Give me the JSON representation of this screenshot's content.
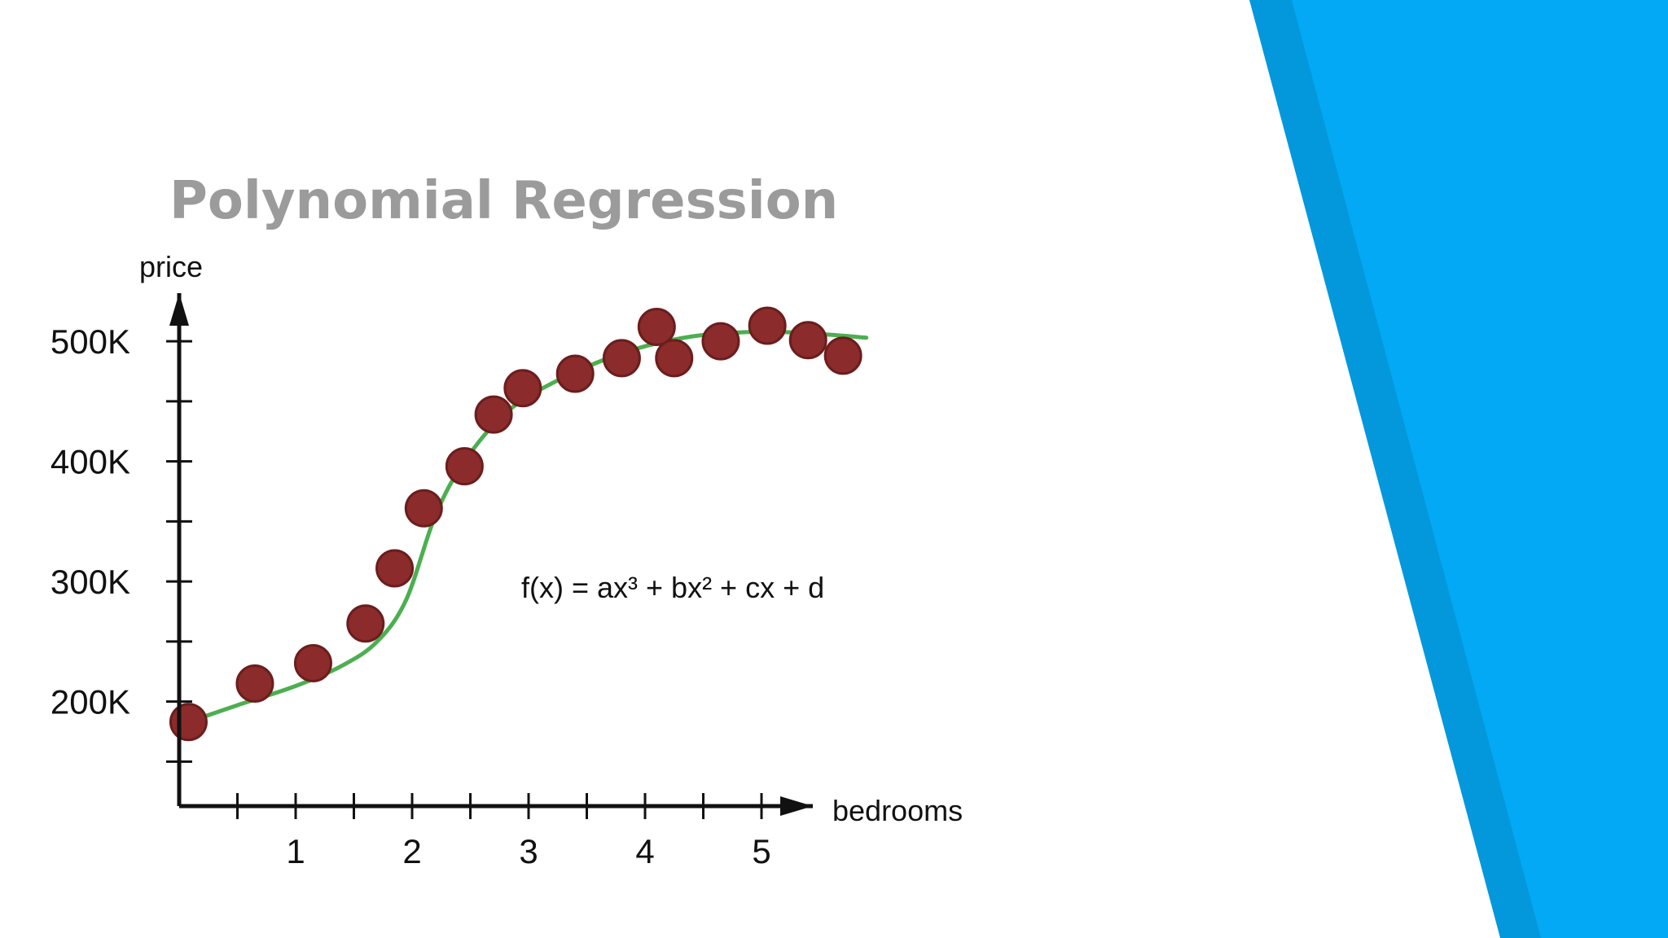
{
  "slide": {
    "title": "Polynomial Regression",
    "colors": {
      "background": "#ffffff",
      "title": "#9b9b9b",
      "accent_light": "#03a9f4",
      "accent_dark": "#0398dc"
    }
  },
  "chart_data": {
    "type": "scatter",
    "title": "",
    "xlabel": "bedrooms",
    "ylabel": "price",
    "xlim": [
      0,
      5.5
    ],
    "ylim": [
      113,
      523
    ],
    "x_ticks": [
      {
        "value": 0.5,
        "label": ""
      },
      {
        "value": 1,
        "label": "1"
      },
      {
        "value": 1.5,
        "label": ""
      },
      {
        "value": 2,
        "label": "2"
      },
      {
        "value": 2.5,
        "label": ""
      },
      {
        "value": 3,
        "label": "3"
      },
      {
        "value": 3.5,
        "label": ""
      },
      {
        "value": 4,
        "label": "4"
      },
      {
        "value": 4.5,
        "label": ""
      },
      {
        "value": 5,
        "label": "5"
      }
    ],
    "y_ticks": [
      {
        "value": 150,
        "label": ""
      },
      {
        "value": 200,
        "label": "200K"
      },
      {
        "value": 250,
        "label": ""
      },
      {
        "value": 300,
        "label": "300K"
      },
      {
        "value": 350,
        "label": ""
      },
      {
        "value": 400,
        "label": "400K"
      },
      {
        "value": 450,
        "label": ""
      },
      {
        "value": 500,
        "label": "500K"
      }
    ],
    "points": [
      {
        "x": 0.08,
        "y": 183
      },
      {
        "x": 0.65,
        "y": 215
      },
      {
        "x": 1.15,
        "y": 232
      },
      {
        "x": 1.6,
        "y": 265
      },
      {
        "x": 1.85,
        "y": 311
      },
      {
        "x": 2.1,
        "y": 361
      },
      {
        "x": 2.45,
        "y": 396
      },
      {
        "x": 2.7,
        "y": 439
      },
      {
        "x": 2.95,
        "y": 461
      },
      {
        "x": 3.4,
        "y": 473
      },
      {
        "x": 3.8,
        "y": 486
      },
      {
        "x": 4.1,
        "y": 512
      },
      {
        "x": 4.25,
        "y": 486
      },
      {
        "x": 4.65,
        "y": 500
      },
      {
        "x": 5.05,
        "y": 513
      },
      {
        "x": 5.4,
        "y": 501
      },
      {
        "x": 5.7,
        "y": 488
      }
    ],
    "fit_curve": {
      "formula": "f(x) = ax³ + bx² + cx + d",
      "color": "#4caf50",
      "points": [
        {
          "x": 0.02,
          "y": 181
        },
        {
          "x": 0.5,
          "y": 197
        },
        {
          "x": 1.0,
          "y": 213
        },
        {
          "x": 1.4,
          "y": 230
        },
        {
          "x": 1.7,
          "y": 250
        },
        {
          "x": 1.95,
          "y": 285
        },
        {
          "x": 2.2,
          "y": 355
        },
        {
          "x": 2.45,
          "y": 400
        },
        {
          "x": 2.8,
          "y": 440
        },
        {
          "x": 3.2,
          "y": 465
        },
        {
          "x": 3.8,
          "y": 490
        },
        {
          "x": 4.4,
          "y": 504
        },
        {
          "x": 5.0,
          "y": 508
        },
        {
          "x": 5.5,
          "y": 506
        },
        {
          "x": 5.9,
          "y": 503
        }
      ]
    },
    "marker_color": "#8b2b2b",
    "marker_edge": "#6b1d1d",
    "grid": false,
    "legend": "none"
  }
}
